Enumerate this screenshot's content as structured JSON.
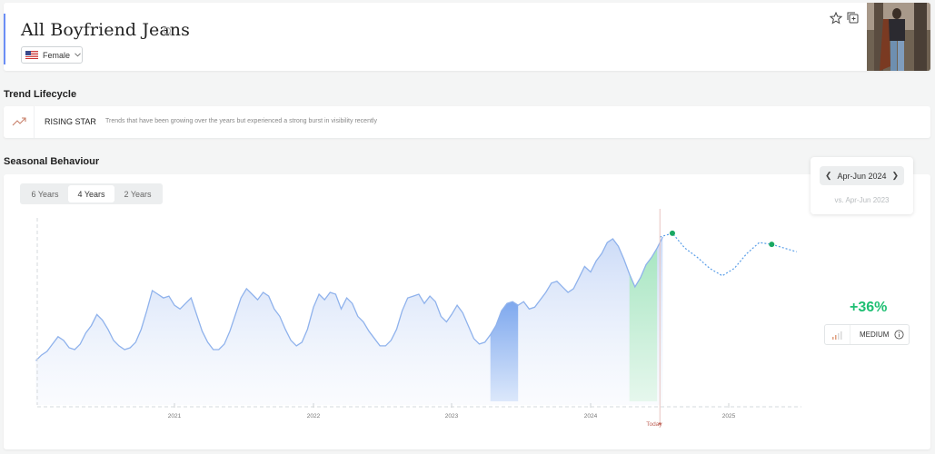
{
  "header": {
    "title": "All Boyfriend Jeans",
    "gender_select": "Female"
  },
  "lifecycle": {
    "section_title": "Trend Lifecycle",
    "stage": "RISING STAR",
    "description": "Trends that have been growing over the years but experienced a strong burst in visibility recently"
  },
  "seasonal": {
    "section_title": "Seasonal Behaviour",
    "tabs": [
      "6 Years",
      "4 Years",
      "2 Years"
    ],
    "active_tab": "4 Years",
    "period": "Apr-Jun 2024",
    "comparison": "vs. Apr-Jun 2023",
    "growth": "+36%",
    "level": "MEDIUM"
  },
  "colors": {
    "accent": "#6b8ef5",
    "line": "#8fb2ec",
    "highlight_prev": "#7ea8ee",
    "highlight_curr": "#a8e6c2",
    "growth": "#1fbf73",
    "today": "#c0655a"
  },
  "chart_data": {
    "type": "area",
    "x_tick_labels": [
      "2021",
      "2022",
      "2023",
      "2024",
      "Today",
      "2025"
    ],
    "series": [
      {
        "x": [
          2020.0,
          2020.04,
          2020.08,
          2020.12,
          2020.16,
          2020.2,
          2020.24,
          2020.28,
          2020.32,
          2020.36,
          2020.4,
          2020.44,
          2020.48,
          2020.52,
          2020.56,
          2020.6,
          2020.64,
          2020.68,
          2020.72,
          2020.76,
          2020.8,
          2020.84,
          2020.88,
          2020.92,
          2020.96,
          2021.0,
          2021.04,
          2021.08,
          2021.12,
          2021.16,
          2021.2,
          2021.24,
          2021.28,
          2021.32,
          2021.36,
          2021.4,
          2021.44,
          2021.48,
          2021.52,
          2021.56,
          2021.6,
          2021.64,
          2021.68,
          2021.72,
          2021.76,
          2021.8,
          2021.84,
          2021.88,
          2021.92,
          2021.96,
          2022.0,
          2022.04,
          2022.08,
          2022.12,
          2022.16,
          2022.2,
          2022.24,
          2022.28,
          2022.32,
          2022.36,
          2022.4,
          2022.44,
          2022.48,
          2022.52,
          2022.56,
          2022.6,
          2022.64,
          2022.68,
          2022.72,
          2022.76,
          2022.8,
          2022.84,
          2022.88,
          2022.92,
          2022.96,
          2023.0,
          2023.04,
          2023.08,
          2023.12,
          2023.16,
          2023.2,
          2023.24,
          2023.28,
          2023.32,
          2023.36,
          2023.4,
          2023.44,
          2023.48,
          2023.52,
          2023.56,
          2023.6,
          2023.64,
          2023.68,
          2023.72,
          2023.76,
          2023.8,
          2023.84,
          2023.88,
          2023.92,
          2023.96,
          2024.0,
          2024.04,
          2024.08,
          2024.12,
          2024.16,
          2024.2,
          2024.24,
          2024.28,
          2024.32,
          2024.36,
          2024.4,
          2024.44,
          2024.48,
          2024.52
        ],
        "y": [
          24,
          27,
          29,
          33,
          37,
          35,
          31,
          30,
          33,
          39,
          43,
          49,
          46,
          41,
          35,
          32,
          30,
          31,
          34,
          41,
          51,
          62,
          60,
          58,
          59,
          54,
          52,
          55,
          58,
          49,
          40,
          34,
          30,
          30,
          33,
          40,
          49,
          58,
          63,
          60,
          57,
          61,
          59,
          52,
          48,
          41,
          35,
          32,
          34,
          41,
          53,
          60,
          57,
          61,
          60,
          52,
          58,
          55,
          48,
          45,
          40,
          36,
          32,
          32,
          35,
          41,
          51,
          58,
          59,
          60,
          55,
          59,
          56,
          48,
          45,
          49,
          54,
          50,
          43,
          36,
          33,
          34,
          38,
          43,
          51,
          55,
          56,
          54,
          56,
          52,
          53,
          57,
          61,
          66,
          67,
          64,
          61,
          63,
          69,
          75,
          72,
          78,
          82,
          88,
          90,
          86,
          79,
          71,
          64,
          69,
          76,
          80,
          85,
          91
        ],
        "name": ""
      }
    ],
    "forecast_y": [
      93,
      85,
      80,
      74,
      70,
      74,
      82,
      88,
      87,
      85,
      83
    ],
    "highlight_prev": {
      "from": 2023.25,
      "to": 2023.5
    },
    "highlight_curr": {
      "from": 2024.25,
      "to": 2024.5
    },
    "today_x": 2024.5,
    "xlim": [
      2020.0,
      2025.5
    ],
    "ylim": [
      0,
      100
    ],
    "grid": false
  }
}
